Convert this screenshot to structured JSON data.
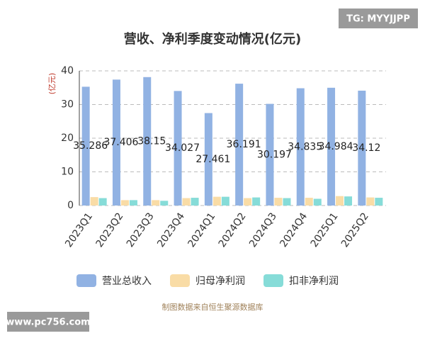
{
  "chart_data": {
    "type": "bar",
    "title": "营收、净利季度变动情况(亿元)",
    "y_label": "(亿元)",
    "categories": [
      "2023Q1",
      "2023Q2",
      "2023Q3",
      "2023Q4",
      "2024Q1",
      "2024Q2",
      "2024Q3",
      "2024Q4",
      "2025Q1",
      "2025Q2"
    ],
    "series": [
      {
        "name": "营业总收入",
        "color": "#91b2e3",
        "values": [
          35.286,
          37.406,
          38.15,
          34.027,
          27.461,
          36.191,
          30.197,
          34.835,
          34.984,
          34.12
        ]
      },
      {
        "name": "归母净利润",
        "color": "#f9dca6",
        "values": [
          2.5,
          1.6,
          1.6,
          2.2,
          2.6,
          2.2,
          2.3,
          2.3,
          2.8,
          2.4
        ]
      },
      {
        "name": "扣非净利润",
        "color": "#86dcd8",
        "values": [
          2.2,
          1.6,
          1.4,
          2.3,
          2.6,
          2.4,
          2.2,
          2.0,
          2.7,
          2.3
        ]
      }
    ],
    "ylim": [
      0,
      40
    ],
    "yticks": [
      0,
      10,
      20,
      30,
      40
    ],
    "grid": true,
    "source": "制图数据来自恒生聚源数据库",
    "watermark_top": "TG: MYYJJPP",
    "watermark_bottom": "www.pc756.com"
  }
}
